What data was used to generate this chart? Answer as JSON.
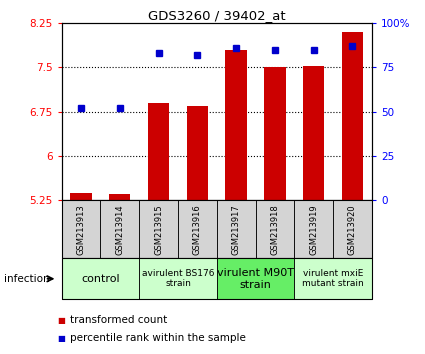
{
  "title": "GDS3260 / 39402_at",
  "samples": [
    "GSM213913",
    "GSM213914",
    "GSM213915",
    "GSM213916",
    "GSM213917",
    "GSM213918",
    "GSM213919",
    "GSM213920"
  ],
  "bar_values": [
    5.37,
    5.35,
    6.9,
    6.85,
    7.8,
    7.5,
    7.52,
    8.1
  ],
  "dot_values": [
    52,
    52,
    83,
    82,
    86,
    85,
    85,
    87
  ],
  "ylim_left": [
    5.25,
    8.25
  ],
  "ylim_right": [
    0,
    100
  ],
  "yticks_left": [
    5.25,
    6.0,
    6.75,
    7.5,
    8.25
  ],
  "ytick_labels_left": [
    "5.25",
    "6",
    "6.75",
    "7.5",
    "8.25"
  ],
  "yticks_right": [
    0,
    25,
    50,
    75,
    100
  ],
  "ytick_labels_right": [
    "0",
    "25",
    "50",
    "75",
    "100%"
  ],
  "bar_color": "#cc0000",
  "dot_color": "#0000cc",
  "bar_width": 0.55,
  "groups": [
    {
      "label": "control",
      "start": 0,
      "end": 2,
      "color": "#ccffcc",
      "fontsize": 8
    },
    {
      "label": "avirulent BS176\nstrain",
      "start": 2,
      "end": 4,
      "color": "#ccffcc",
      "fontsize": 6.5
    },
    {
      "label": "virulent M90T\nstrain",
      "start": 4,
      "end": 6,
      "color": "#66ee66",
      "fontsize": 8
    },
    {
      "label": "virulent mxiE\nmutant strain",
      "start": 6,
      "end": 8,
      "color": "#ccffcc",
      "fontsize": 6.5
    }
  ],
  "infection_label": "infection",
  "legend_bar_label": "transformed count",
  "legend_dot_label": "percentile rank within the sample",
  "background_color": "#ffffff"
}
